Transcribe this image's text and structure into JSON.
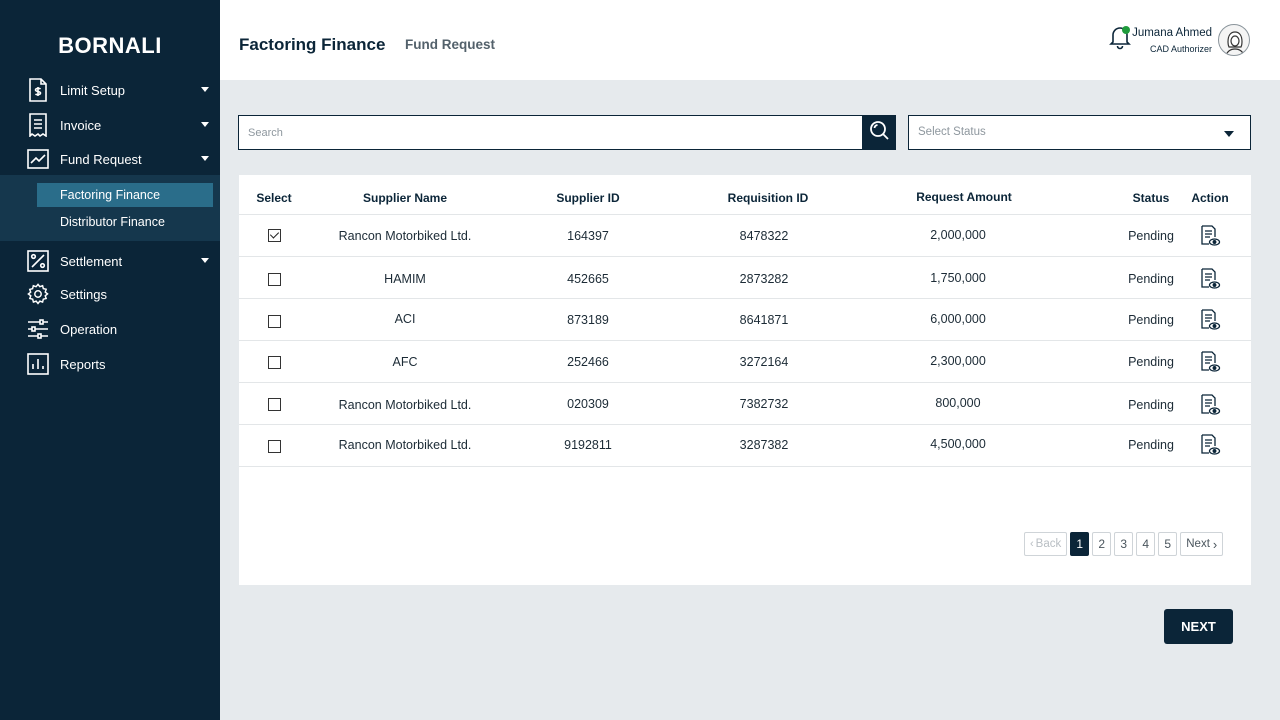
{
  "brand": "BORNALI",
  "sidebar": {
    "items": [
      {
        "label": "Limit Setup",
        "icon": "document-dollar-icon"
      },
      {
        "label": "Invoice",
        "icon": "receipt-icon"
      },
      {
        "label": "Fund Request",
        "icon": "trend-chart-icon"
      },
      {
        "label": "Settlement",
        "icon": "percent-icon"
      },
      {
        "label": "Settings",
        "icon": "gear-icon"
      },
      {
        "label": "Operation",
        "icon": "sliders-icon"
      },
      {
        "label": "Reports",
        "icon": "bar-chart-icon"
      }
    ],
    "sub_items": [
      {
        "label": "Factoring Finance",
        "active": true
      },
      {
        "label": "Distributor Finance",
        "active": false
      }
    ]
  },
  "header": {
    "title": "Factoring Finance",
    "subtitle": "Fund Request",
    "user_name": "Jumana Ahmed",
    "user_role": "CAD Authorizer"
  },
  "search": {
    "placeholder": "Search"
  },
  "status_filter": {
    "placeholder": "Select Status"
  },
  "table": {
    "headers": {
      "select": "Select",
      "supplier_name": "Supplier Name",
      "supplier_id": "Supplier ID",
      "requisition_id": "Requisition ID",
      "request_amount": "Request Amount",
      "status": "Status",
      "action": "Action"
    },
    "rows": [
      {
        "checked": true,
        "supplier_name": "Rancon Motorbiked Ltd.",
        "supplier_id": "164397",
        "requisition_id": "8478322",
        "amount": "2,000,000",
        "status": "Pending"
      },
      {
        "checked": false,
        "supplier_name": "HAMIM",
        "supplier_id": "452665",
        "requisition_id": "2873282",
        "amount": "1,750,000",
        "status": "Pending"
      },
      {
        "checked": false,
        "supplier_name": "ACI",
        "supplier_id": "873189",
        "requisition_id": "8641871",
        "amount": "6,000,000",
        "status": "Pending"
      },
      {
        "checked": false,
        "supplier_name": "AFC",
        "supplier_id": "252466",
        "requisition_id": "3272164",
        "amount": "2,300,000",
        "status": "Pending"
      },
      {
        "checked": false,
        "supplier_name": "Rancon Motorbiked Ltd.",
        "supplier_id": "020309",
        "requisition_id": "7382732",
        "amount": "800,000",
        "status": "Pending"
      },
      {
        "checked": false,
        "supplier_name": "Rancon Motorbiked Ltd.",
        "supplier_id": "9192811",
        "requisition_id": "3287382",
        "amount": "4,500,000",
        "status": "Pending"
      }
    ]
  },
  "pagination": {
    "back_label": "Back",
    "next_label": "Next",
    "pages": [
      "1",
      "2",
      "3",
      "4",
      "5"
    ],
    "current": "1"
  },
  "next_button": "NEXT",
  "colors": {
    "sidebar_bg": "#0b2538",
    "active_sub": "#2a6d8a",
    "accent": "#0b2538",
    "notification_dot": "#1f9b3c"
  }
}
